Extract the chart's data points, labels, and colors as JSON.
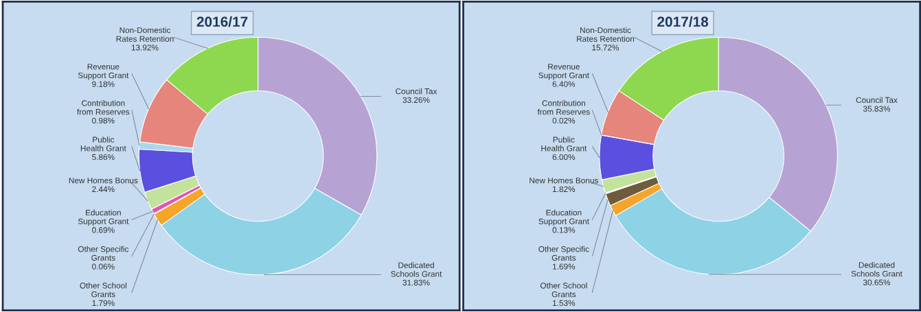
{
  "chart_data": [
    {
      "type": "donut",
      "title": "2016/17",
      "categories": [
        "Council Tax",
        "Dedicated Schools Grant",
        "Other School Grants",
        "Other Specific Grants",
        "Education Support Grant",
        "New Homes Bonus",
        "Public Health Grant",
        "Contribution from Reserves",
        "Revenue Support Grant",
        "Non-Domestic Rates Retention"
      ],
      "values": [
        33.26,
        31.83,
        1.79,
        0.06,
        0.69,
        2.44,
        5.86,
        0.98,
        9.18,
        13.92
      ],
      "value_labels": [
        "33.26%",
        "31.83%",
        "1.79%",
        "0.06%",
        "0.69%",
        "2.44%",
        "5.86%",
        "0.98%",
        "9.18%",
        "13.92%"
      ],
      "colors": [
        "#b7a3d3",
        "#8ed2e6",
        "#f5a52a",
        "#6e5c3c",
        "#e255b0",
        "#c3e39c",
        "#5b4fe0",
        "#a9d7f0",
        "#e6857b",
        "#8ed84f"
      ]
    },
    {
      "type": "donut",
      "title": "2017/18",
      "categories": [
        "Council Tax",
        "Dedicated Schools Grant",
        "Other School Grants",
        "Other Specific Grants",
        "Education Support Grant",
        "New Homes Bonus",
        "Public Health Grant",
        "Contribution from Reserves",
        "Revenue Support Grant",
        "Non-Domestic Rates Retention"
      ],
      "values": [
        35.83,
        30.65,
        1.53,
        1.69,
        0.13,
        1.82,
        6.0,
        0.02,
        6.4,
        15.72
      ],
      "value_labels": [
        "35.83%",
        "30.65%",
        "1.53%",
        "1.69%",
        "0.13%",
        "1.82%",
        "6.00%",
        "0.02%",
        "6.40%",
        "15.72%"
      ],
      "colors": [
        "#b7a3d3",
        "#8ed2e6",
        "#f5a52a",
        "#6e5c3c",
        "#e255b0",
        "#c3e39c",
        "#5b4fe0",
        "#a9d7f0",
        "#e6857b",
        "#8ed84f"
      ]
    }
  ]
}
